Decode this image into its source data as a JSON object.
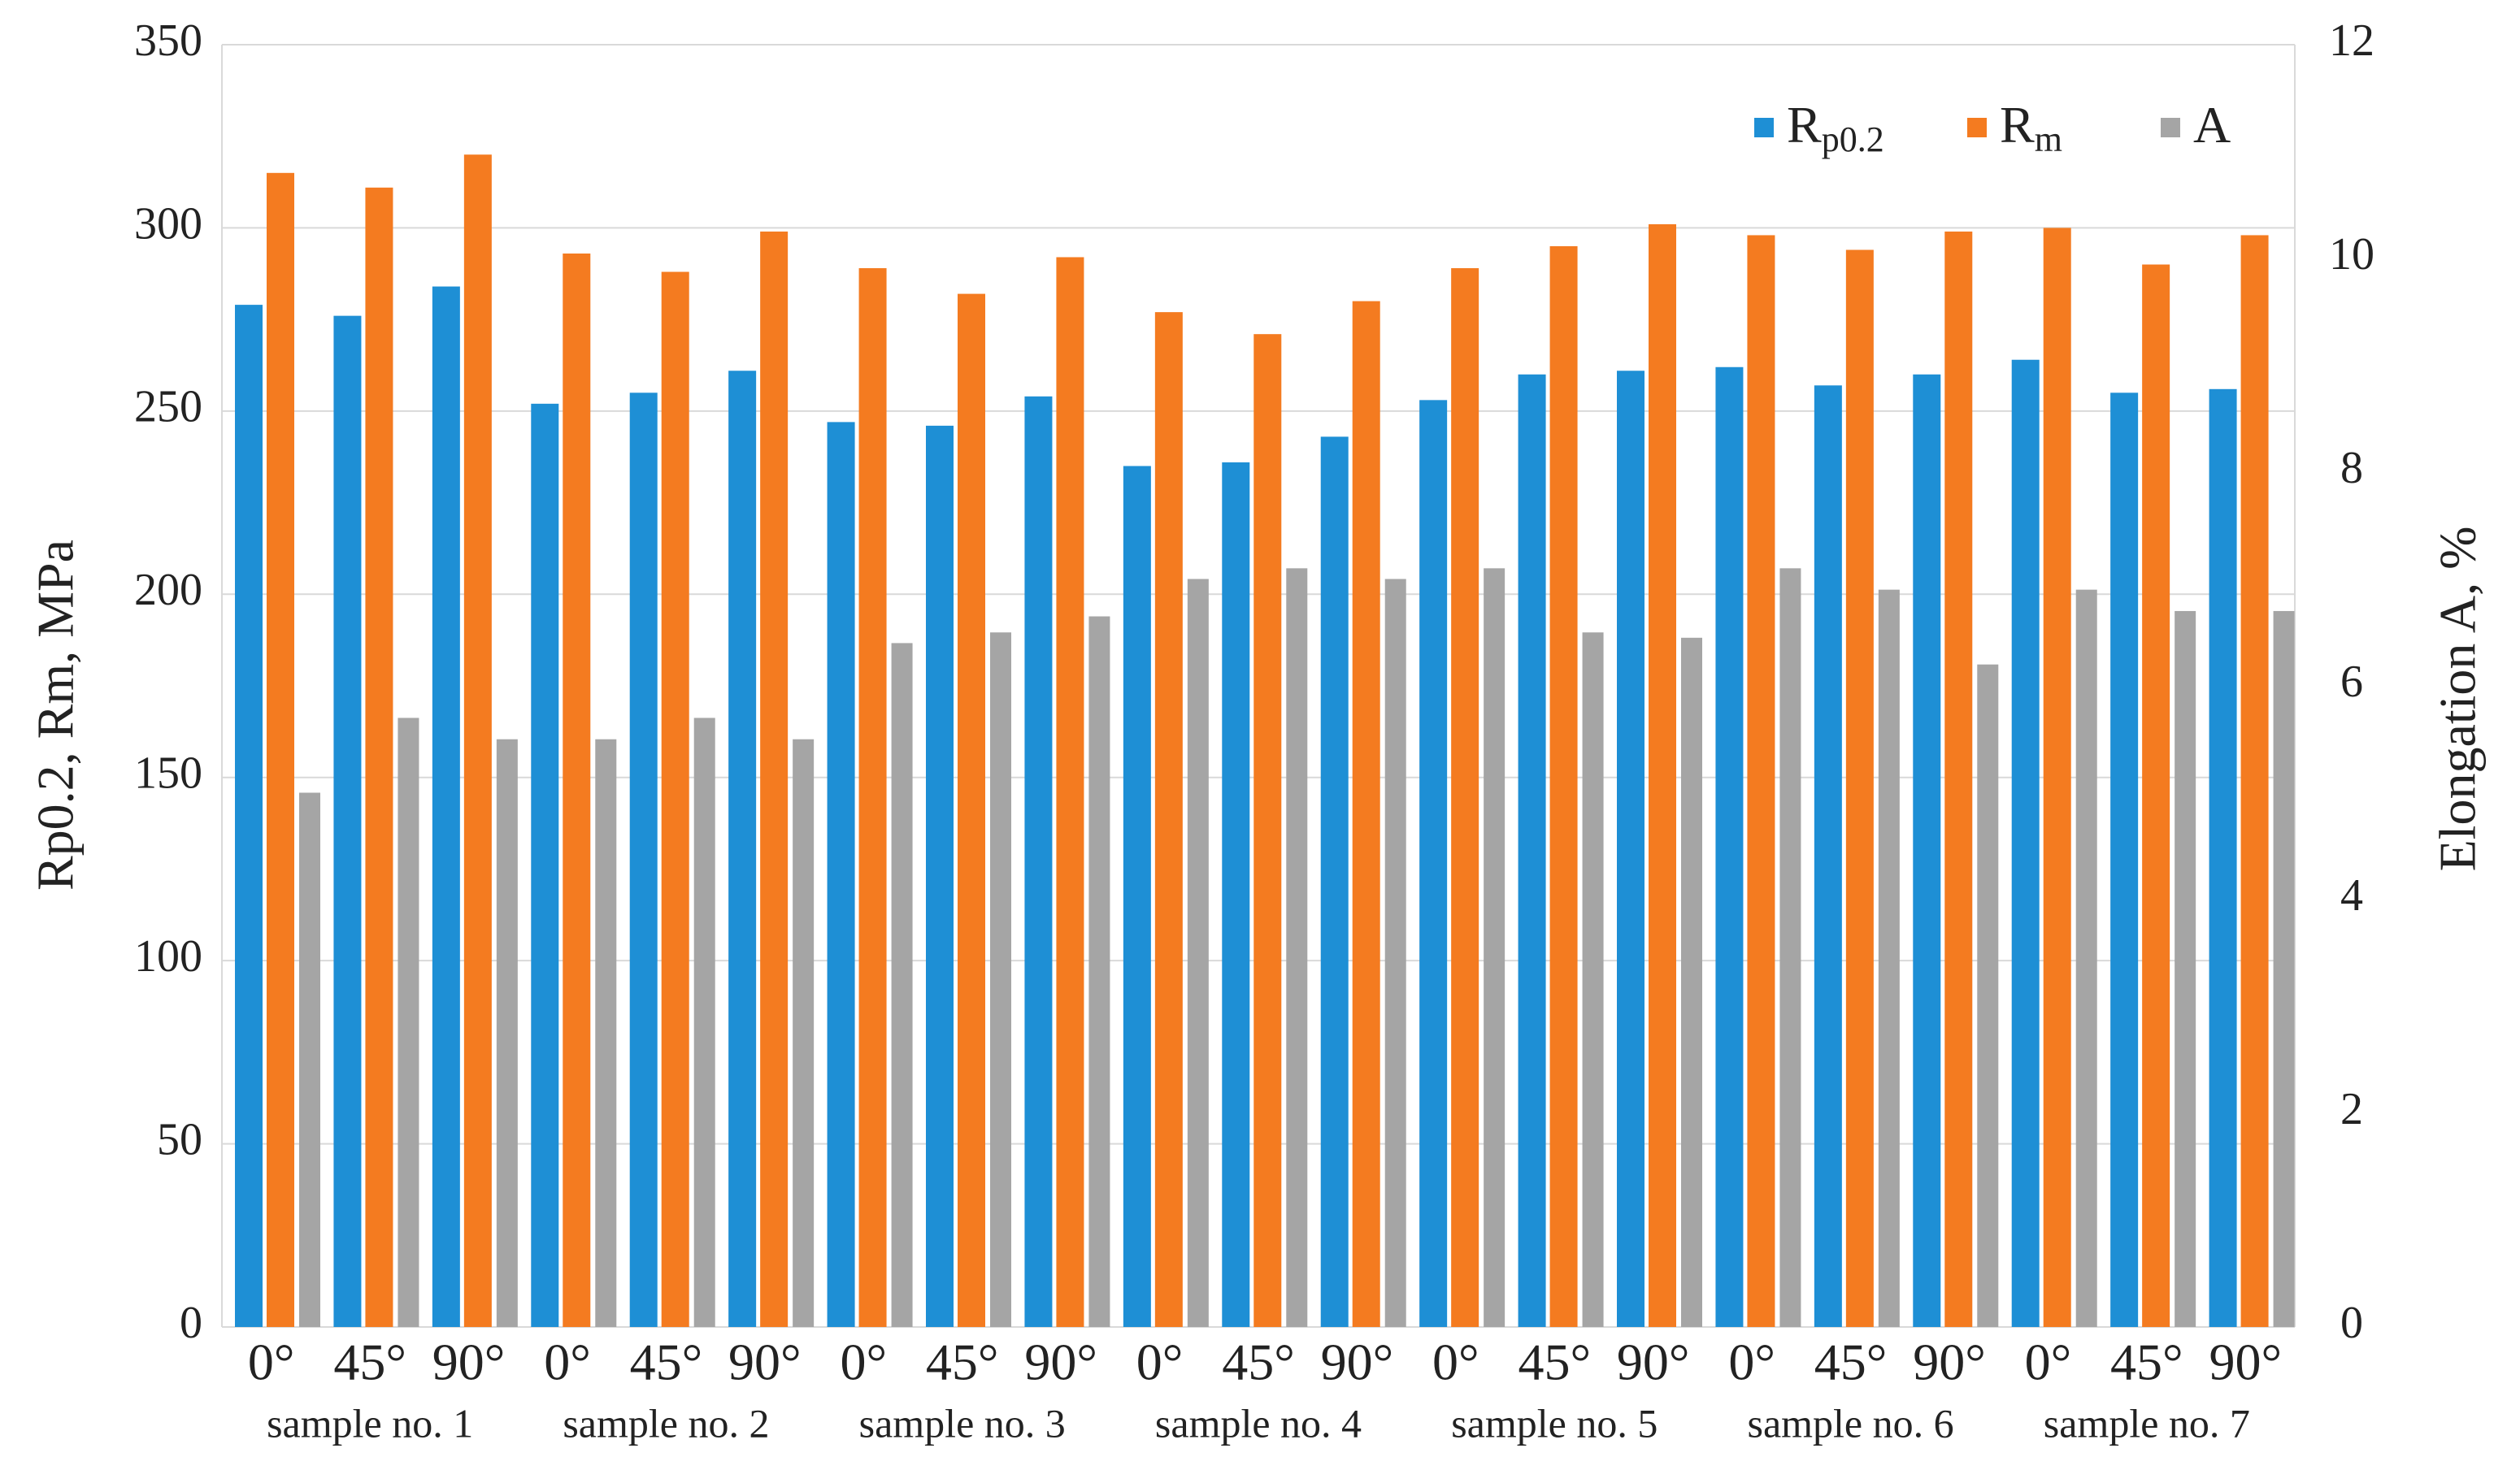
{
  "chart_data": {
    "type": "bar",
    "y_label": "Rp0.2, Rm, MPa",
    "y2_label": "Elongation A, %",
    "categories": [
      "0°",
      "45°",
      "90°",
      "0°",
      "45°",
      "90°",
      "0°",
      "45°",
      "90°",
      "0°",
      "45°",
      "90°",
      "0°",
      "45°",
      "90°",
      "0°",
      "45°",
      "90°",
      "0°",
      "45°",
      "90°"
    ],
    "groups": [
      "sample no. 1",
      "sample no. 2",
      "sample no. 3",
      "sample no. 4",
      "sample no. 5",
      "sample no. 6",
      "sample no. 7"
    ],
    "series": [
      {
        "name": "Rp0.2",
        "color": "#1e8fd5",
        "values": [
          279,
          276,
          284,
          252,
          255,
          261,
          247,
          246,
          254,
          235,
          236,
          243,
          253,
          260,
          261,
          262,
          257,
          260,
          264,
          255,
          256
        ]
      },
      {
        "name": "Rm",
        "color": "#f47b20",
        "values": [
          315,
          311,
          320,
          293,
          288,
          299,
          289,
          282,
          292,
          277,
          271,
          280,
          289,
          295,
          301,
          298,
          294,
          299,
          300,
          290,
          298
        ]
      },
      {
        "name": "A",
        "color": "#a5a5a5",
        "axis": "y2",
        "values": [
          5.0,
          5.7,
          5.5,
          5.5,
          5.7,
          5.5,
          6.4,
          6.5,
          6.65,
          7.0,
          7.1,
          7.0,
          7.1,
          6.5,
          6.45,
          7.1,
          6.9,
          6.2,
          6.9,
          6.7,
          6.7
        ]
      }
    ],
    "ylim": [
      0,
      350
    ],
    "yticks": [
      0,
      50,
      100,
      150,
      200,
      250,
      300,
      350
    ],
    "y2lim": [
      0,
      12
    ],
    "y2ticks": [
      0,
      2,
      4,
      6,
      8,
      10,
      12
    ],
    "grid": true,
    "legend": "top-right"
  }
}
